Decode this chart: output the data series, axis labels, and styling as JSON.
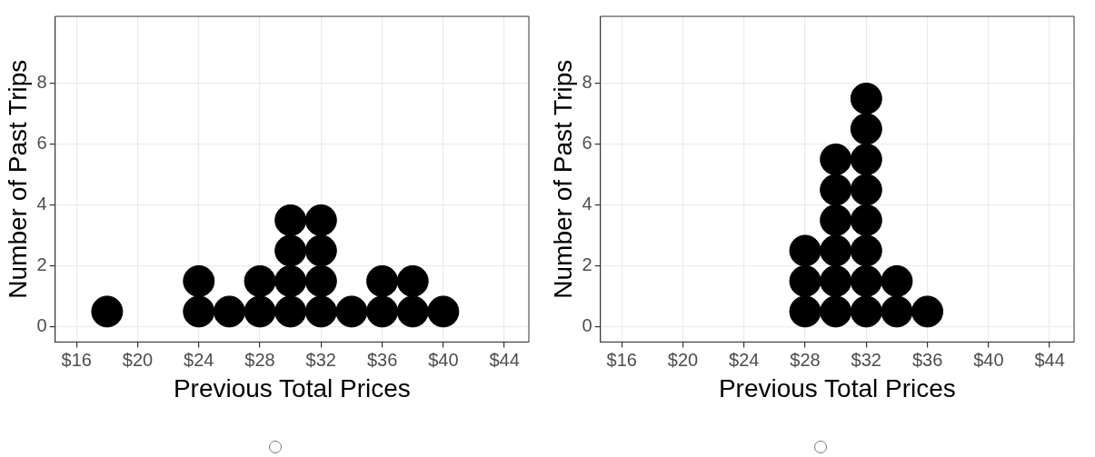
{
  "chart_data": [
    {
      "type": "scatter",
      "xlabel": "Previous Total Prices",
      "ylabel": "Number of Past Trips",
      "marker": "circle",
      "grid": true,
      "legend": false,
      "xlim": [
        14.6,
        45.6
      ],
      "ylim": [
        -0.5,
        10.2
      ],
      "xticks": [
        {
          "value": 16,
          "label": "$16"
        },
        {
          "value": 20,
          "label": "$20"
        },
        {
          "value": 24,
          "label": "$24"
        },
        {
          "value": 28,
          "label": "$28"
        },
        {
          "value": 32,
          "label": "$32"
        },
        {
          "value": 36,
          "label": "$36"
        },
        {
          "value": 40,
          "label": "$40"
        },
        {
          "value": 44,
          "label": "$44"
        }
      ],
      "yticks": [
        0,
        2,
        4,
        6,
        8
      ],
      "series": [
        {
          "color": "#000000",
          "x": [
            18,
            24,
            24,
            26,
            28,
            28,
            30,
            30,
            30,
            30,
            32,
            32,
            32,
            32,
            34,
            36,
            36,
            38,
            38,
            40
          ],
          "values": [
            0.5,
            0.5,
            1.5,
            0.5,
            0.5,
            1.5,
            0.5,
            1.5,
            2.5,
            3.5,
            0.5,
            1.5,
            2.5,
            3.5,
            0.5,
            0.5,
            1.5,
            0.5,
            1.5,
            0.5
          ]
        }
      ]
    },
    {
      "type": "scatter",
      "xlabel": "Previous Total Prices",
      "ylabel": "Number of Past Trips",
      "marker": "circle",
      "grid": true,
      "legend": false,
      "xlim": [
        14.6,
        45.6
      ],
      "ylim": [
        -0.5,
        10.2
      ],
      "xticks": [
        {
          "value": 16,
          "label": "$16"
        },
        {
          "value": 20,
          "label": "$20"
        },
        {
          "value": 24,
          "label": "$24"
        },
        {
          "value": 28,
          "label": "$28"
        },
        {
          "value": 32,
          "label": "$32"
        },
        {
          "value": 36,
          "label": "$36"
        },
        {
          "value": 40,
          "label": "$40"
        },
        {
          "value": 44,
          "label": "$44"
        }
      ],
      "yticks": [
        0,
        2,
        4,
        6,
        8
      ],
      "series": [
        {
          "color": "#000000",
          "x": [
            28,
            28,
            28,
            30,
            30,
            30,
            30,
            30,
            30,
            32,
            32,
            32,
            32,
            32,
            32,
            32,
            32,
            34,
            34,
            36
          ],
          "values": [
            0.5,
            1.5,
            2.5,
            0.5,
            1.5,
            2.5,
            3.5,
            4.5,
            5.5,
            0.5,
            1.5,
            2.5,
            3.5,
            4.5,
            5.5,
            6.5,
            7.5,
            0.5,
            1.5,
            0.5
          ]
        }
      ]
    }
  ]
}
